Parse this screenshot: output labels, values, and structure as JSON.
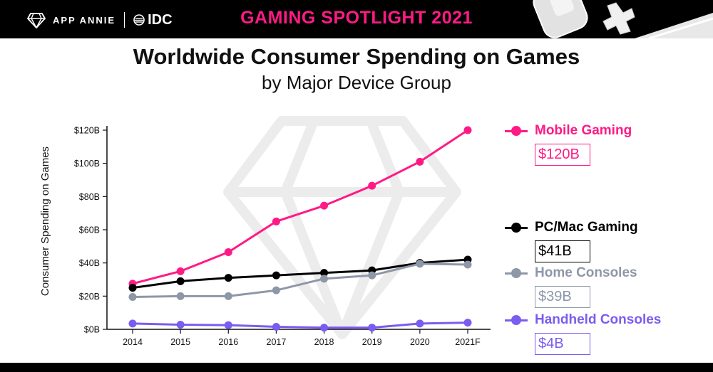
{
  "header": {
    "brand": "APP ANNIE",
    "partner": "IDC",
    "banner": "GAMING SPOTLIGHT 2021"
  },
  "colors": {
    "mobile": "#ff1a86",
    "pc": "#000000",
    "home": "#8e97a8",
    "handheld": "#7b5cf0",
    "accent": "#ff1a86"
  },
  "icons": [
    "diamond-logo-icon",
    "idc-logo-icon",
    "console-controller-icon"
  ],
  "legend": [
    {
      "name": "Mobile Gaming",
      "value_label": "$120B"
    },
    {
      "name": "PC/Mac Gaming",
      "value_label": "$41B"
    },
    {
      "name": "Home Consoles",
      "value_label": "$39B"
    },
    {
      "name": "Handheld Consoles",
      "value_label": "$4B"
    }
  ],
  "chart_data": {
    "type": "line",
    "title": "Worldwide Consumer Spending on Games",
    "subtitle": "by Major Device Group",
    "xlabel": "",
    "ylabel": "Consumer Spending on Games",
    "categories": [
      "2014",
      "2015",
      "2016",
      "2017",
      "2018",
      "2019",
      "2020",
      "2021F"
    ],
    "ylim": [
      0,
      120
    ],
    "yticks": [
      0,
      20,
      40,
      60,
      80,
      100,
      120
    ],
    "ytick_labels": [
      "$0B",
      "$20B",
      "$40B",
      "$60B",
      "$80B",
      "$100B",
      "$120B"
    ],
    "grid": false,
    "legend_position": "right",
    "series": [
      {
        "name": "Mobile Gaming",
        "color": "#ff1a86",
        "values": [
          27.5,
          35,
          46.5,
          65,
          74.5,
          86.5,
          101,
          120
        ]
      },
      {
        "name": "PC/Mac Gaming",
        "color": "#000000",
        "values": [
          25,
          29,
          31,
          32.5,
          34,
          35.5,
          40,
          42
        ]
      },
      {
        "name": "Home Consoles",
        "color": "#8e97a8",
        "values": [
          19.5,
          20,
          20,
          23.5,
          30.5,
          32.5,
          39.5,
          39
        ]
      },
      {
        "name": "Handheld Consoles",
        "color": "#7b5cf0",
        "values": [
          3.5,
          2.8,
          2.5,
          1.5,
          1,
          1,
          3.5,
          4
        ]
      }
    ]
  }
}
